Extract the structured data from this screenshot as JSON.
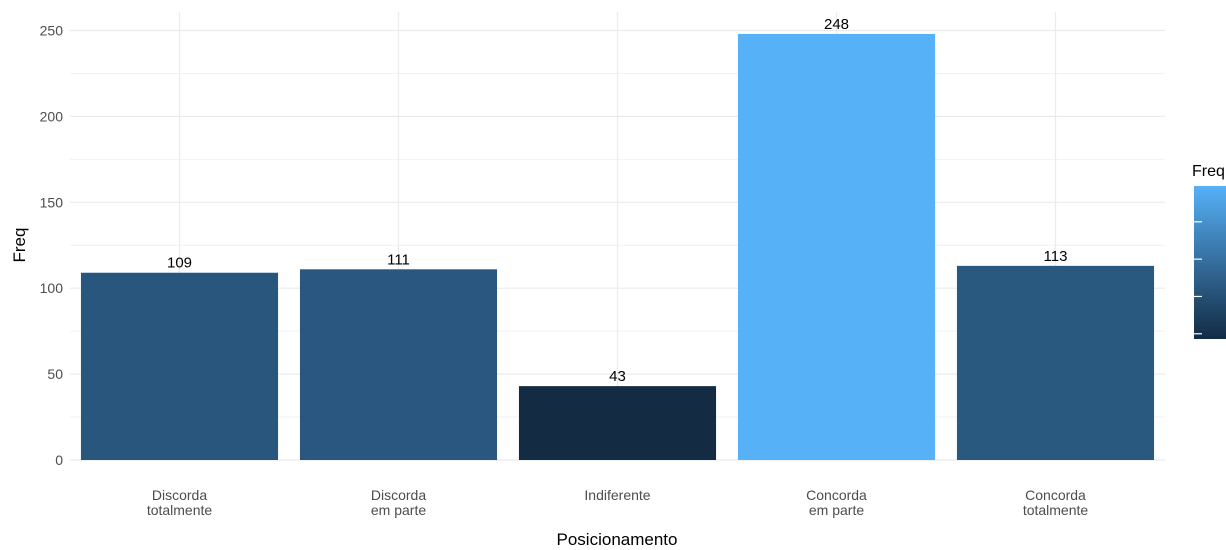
{
  "chart_data": {
    "type": "bar",
    "categories": [
      [
        "Discorda",
        "totalmente"
      ],
      [
        "Discorda",
        "em parte"
      ],
      [
        "Indiferente"
      ],
      [
        "Concorda",
        "em parte"
      ],
      [
        "Concorda",
        "totalmente"
      ]
    ],
    "values": [
      109,
      111,
      43,
      248,
      113
    ],
    "data_labels": [
      "109",
      "111",
      "43",
      "248",
      "113"
    ],
    "xlabel": "Posicionamento",
    "ylabel": "Freq",
    "ylim": [
      0,
      260
    ],
    "yticks": [
      0,
      50,
      100,
      150,
      200,
      250
    ],
    "grid": true,
    "legend": {
      "title": "Freq",
      "type": "colorbar",
      "placement": "right",
      "color_low": "#132B43",
      "color_high": "#56B1F7",
      "value_range": [
        43,
        248
      ]
    }
  }
}
